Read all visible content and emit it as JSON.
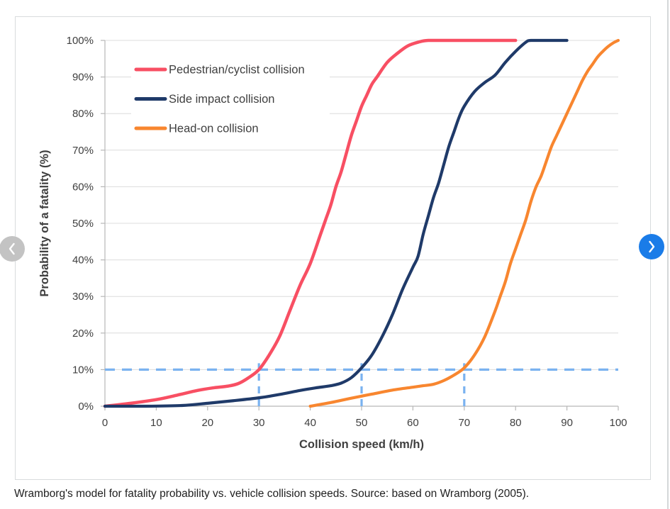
{
  "caption": "Wramborg's model for fatality probability vs. vehicle collision speeds. Source: based on Wramborg (2005).",
  "carousel": {
    "prev_icon": "chevron-left",
    "next_icon": "chevron-right"
  },
  "colors": {
    "next_button": "#1a7ce8",
    "prev_button": "#c3c3c3",
    "chevron": "#ffffff",
    "grid": "#dcdcdc",
    "axis": "#b7b7b7",
    "chart_text": "#3f3f3f",
    "card_border": "#d8dbdd",
    "caption_text": "#1f1f1f"
  },
  "chart_data": {
    "type": "line",
    "title": "",
    "xlabel": "Collision speed (km/h)",
    "ylabel": "Probability of a fatality (%)",
    "xlim": [
      0,
      100
    ],
    "ylim": [
      0,
      100
    ],
    "x_ticks": [
      0,
      10,
      20,
      30,
      40,
      50,
      60,
      70,
      80,
      90,
      100
    ],
    "y_ticks": [
      0,
      10,
      20,
      30,
      40,
      50,
      60,
      70,
      80,
      90,
      100
    ],
    "y_tick_suffix": "%",
    "grid": "horizontal",
    "legend_position": "inside-top-left",
    "series": [
      {
        "name": "Pedestrian/cyclist collision",
        "color": "#f84f63",
        "width": 4.5,
        "points": [
          [
            0,
            0
          ],
          [
            5,
            0.8
          ],
          [
            10,
            1.8
          ],
          [
            14,
            3
          ],
          [
            18,
            4.3
          ],
          [
            21,
            5
          ],
          [
            24,
            5.5
          ],
          [
            26,
            6.2
          ],
          [
            28,
            7.8
          ],
          [
            30,
            10
          ],
          [
            32,
            14
          ],
          [
            34,
            19
          ],
          [
            36,
            26
          ],
          [
            38,
            33
          ],
          [
            40,
            39
          ],
          [
            42,
            47
          ],
          [
            43,
            51
          ],
          [
            44,
            55
          ],
          [
            45,
            60
          ],
          [
            46,
            64
          ],
          [
            47,
            69
          ],
          [
            48,
            74
          ],
          [
            49,
            78
          ],
          [
            50,
            82
          ],
          [
            51,
            85
          ],
          [
            52,
            88
          ],
          [
            53,
            90
          ],
          [
            55,
            94
          ],
          [
            57,
            96.5
          ],
          [
            59,
            98.5
          ],
          [
            61,
            99.5
          ],
          [
            63,
            100
          ],
          [
            68,
            100
          ],
          [
            74,
            100
          ],
          [
            80,
            100
          ]
        ]
      },
      {
        "name": "Side impact collision",
        "color": "#1f3a69",
        "width": 4.2,
        "points": [
          [
            0,
            0
          ],
          [
            8,
            0
          ],
          [
            15,
            0.2
          ],
          [
            20,
            0.8
          ],
          [
            25,
            1.5
          ],
          [
            30,
            2.3
          ],
          [
            34,
            3.2
          ],
          [
            38,
            4.3
          ],
          [
            41,
            5
          ],
          [
            44,
            5.6
          ],
          [
            46,
            6.3
          ],
          [
            48,
            7.8
          ],
          [
            50,
            10.5
          ],
          [
            52,
            14
          ],
          [
            54,
            19
          ],
          [
            56,
            25
          ],
          [
            58,
            32
          ],
          [
            60,
            38
          ],
          [
            61,
            41
          ],
          [
            62,
            47
          ],
          [
            63,
            52
          ],
          [
            64,
            57
          ],
          [
            65,
            61
          ],
          [
            66,
            66
          ],
          [
            67,
            71
          ],
          [
            68,
            75
          ],
          [
            69,
            79
          ],
          [
            70,
            82
          ],
          [
            72,
            86
          ],
          [
            74,
            88.5
          ],
          [
            76,
            90.5
          ],
          [
            78,
            94
          ],
          [
            80,
            97
          ],
          [
            82,
            99.5
          ],
          [
            83,
            100
          ],
          [
            86,
            100
          ],
          [
            90,
            100
          ]
        ]
      },
      {
        "name": "Head-on collision",
        "color": "#f8862f",
        "width": 4.2,
        "points": [
          [
            40,
            0
          ],
          [
            44,
            1
          ],
          [
            48,
            2.2
          ],
          [
            52,
            3.3
          ],
          [
            56,
            4.4
          ],
          [
            60,
            5.2
          ],
          [
            62,
            5.6
          ],
          [
            64,
            6
          ],
          [
            66,
            7
          ],
          [
            68,
            8.5
          ],
          [
            70,
            10.5
          ],
          [
            72,
            14
          ],
          [
            74,
            19
          ],
          [
            76,
            26
          ],
          [
            77,
            30
          ],
          [
            78,
            34
          ],
          [
            79,
            39
          ],
          [
            80,
            43
          ],
          [
            81,
            47
          ],
          [
            82,
            51
          ],
          [
            83,
            56
          ],
          [
            84,
            60
          ],
          [
            85,
            63
          ],
          [
            86,
            67
          ],
          [
            87,
            71
          ],
          [
            88,
            74
          ],
          [
            89,
            77
          ],
          [
            90,
            80
          ],
          [
            91,
            83
          ],
          [
            92,
            86
          ],
          [
            93,
            89
          ],
          [
            94,
            91.5
          ],
          [
            95,
            93.5
          ],
          [
            96,
            95.5
          ],
          [
            97,
            97
          ],
          [
            98,
            98.3
          ],
          [
            99,
            99.3
          ],
          [
            100,
            100
          ]
        ]
      }
    ],
    "guides": {
      "color": "#7ab2f0",
      "horizontal_at_percent": 10,
      "vertical_at_kmh": [
        30,
        50,
        70
      ]
    }
  }
}
